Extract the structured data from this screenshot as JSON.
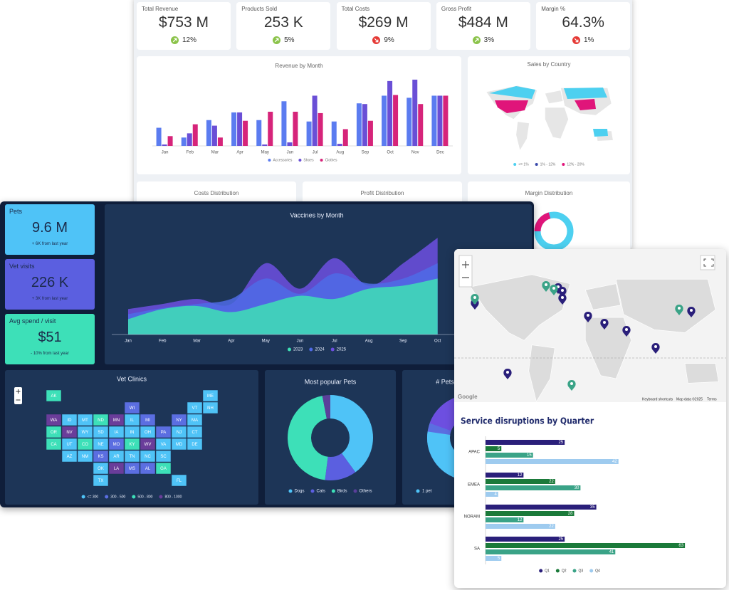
{
  "back_dashboard": {
    "kpis": [
      {
        "label": "Total Revenue",
        "value": "$753 M",
        "change": "12%",
        "trend": "up"
      },
      {
        "label": "Products Sold",
        "value": "253 K",
        "change": "5%",
        "trend": "up"
      },
      {
        "label": "Total Costs",
        "value": "$269 M",
        "change": "9%",
        "trend": "down"
      },
      {
        "label": "Gross Profit",
        "value": "$484 M",
        "change": "3%",
        "trend": "up"
      },
      {
        "label": "Margin %",
        "value": "64.3%",
        "change": "1%",
        "trend": "down"
      }
    ],
    "sales_map": {
      "title": "Sales by Country",
      "legend": [
        {
          "label": "<= 1%",
          "color": "#4dd0f0"
        },
        {
          "label": "1% - 12%",
          "color": "#3949ab"
        },
        {
          "label": "12% - 20%",
          "color": "#e0157a"
        }
      ]
    },
    "panel_titles": [
      "Costs Distribution",
      "Profit Distribution",
      "Margin Distribution"
    ]
  },
  "front_dashboard": {
    "kpis": [
      {
        "label": "Pets",
        "value": "9.6 M",
        "note": "+ 6K from last year",
        "color": "#4fc3f7"
      },
      {
        "label": "Vet visits",
        "value": "226 K",
        "note": "+ 3K from last year",
        "color": "#5b5fe0"
      },
      {
        "label": "Avg spend / visit",
        "value": "$51",
        "note": "- 10% from last year",
        "color": "#3de0b8"
      }
    ],
    "pets_count": {
      "title": "# Pets",
      "legend": [
        "1 pet"
      ]
    }
  },
  "map_widget": {
    "attribution": "Google",
    "footer": [
      "Keyboard shortcuts",
      "Map data ©2025",
      "Terms"
    ]
  },
  "chart_data": [
    {
      "type": "bar",
      "title": "Revenue by Month",
      "categories": [
        "Jan",
        "Feb",
        "Mar",
        "Apr",
        "May",
        "Jun",
        "Jul",
        "Aug",
        "Sep",
        "Oct",
        "Nov",
        "Dec"
      ],
      "series": [
        {
          "name": "Accessories",
          "color": "#5b7cf0",
          "values": [
            26,
            12,
            37,
            48,
            37,
            64,
            35,
            35,
            61,
            72,
            69,
            72
          ]
        },
        {
          "name": "Shoes",
          "color": "#6a4fd6",
          "values": [
            2,
            18,
            29,
            48,
            2,
            5,
            72,
            3,
            60,
            93,
            95,
            72
          ]
        },
        {
          "name": "Clothes",
          "color": "#d6247a",
          "values": [
            14,
            31,
            12,
            36,
            49,
            49,
            47,
            24,
            36,
            73,
            60,
            72
          ]
        }
      ],
      "ylim": [
        0,
        100
      ]
    },
    {
      "type": "area",
      "title": "Vaccines by Month",
      "categories": [
        "Jan",
        "Feb",
        "Mar",
        "Apr",
        "May",
        "Jun",
        "Jul",
        "Aug",
        "Sep",
        "Oct"
      ],
      "series": [
        {
          "name": "2023",
          "color": "#3ee0b5",
          "values": [
            15,
            25,
            28,
            22,
            30,
            38,
            35,
            45,
            48,
            55
          ]
        },
        {
          "name": "2024",
          "color": "#4f6be6",
          "values": [
            20,
            26,
            30,
            35,
            55,
            40,
            60,
            50,
            55,
            70
          ]
        },
        {
          "name": "2025",
          "color": "#6d4fe0",
          "values": [
            25,
            30,
            35,
            30,
            70,
            45,
            75,
            48,
            70,
            95
          ]
        }
      ],
      "ylim": [
        0,
        100
      ]
    },
    {
      "type": "choropleth",
      "title": "Vet Clinics",
      "legend": [
        {
          "label": "<= 300",
          "color": "#4fc3f7"
        },
        {
          "label": "300 - 500",
          "color": "#5b6ee1"
        },
        {
          "label": "500 - 800",
          "color": "#3de0b8"
        },
        {
          "label": "800 - 1000",
          "color": "#6a3d9a"
        }
      ],
      "states": [
        {
          "name": "AK",
          "bucket": 2
        },
        {
          "name": "ME",
          "bucket": 0
        },
        {
          "name": "WI",
          "bucket": 1
        },
        {
          "name": "VT",
          "bucket": 0
        },
        {
          "name": "NH",
          "bucket": 0
        },
        {
          "name": "WA",
          "bucket": 3
        },
        {
          "name": "ID",
          "bucket": 0
        },
        {
          "name": "MT",
          "bucket": 0
        },
        {
          "name": "ND",
          "bucket": 2
        },
        {
          "name": "MN",
          "bucket": 3
        },
        {
          "name": "IL",
          "bucket": 0
        },
        {
          "name": "MI",
          "bucket": 1
        },
        {
          "name": "NY",
          "bucket": 1
        },
        {
          "name": "MA",
          "bucket": 0
        },
        {
          "name": "OR",
          "bucket": 2
        },
        {
          "name": "NV",
          "bucket": 3
        },
        {
          "name": "WY",
          "bucket": 0
        },
        {
          "name": "SD",
          "bucket": 0
        },
        {
          "name": "IA",
          "bucket": 0
        },
        {
          "name": "IN",
          "bucket": 0
        },
        {
          "name": "OH",
          "bucket": 0
        },
        {
          "name": "PA",
          "bucket": 1
        },
        {
          "name": "NJ",
          "bucket": 0
        },
        {
          "name": "CT",
          "bucket": 0
        },
        {
          "name": "CA",
          "bucket": 2
        },
        {
          "name": "UT",
          "bucket": 0
        },
        {
          "name": "CO",
          "bucket": 2
        },
        {
          "name": "NE",
          "bucket": 0
        },
        {
          "name": "MO",
          "bucket": 1
        },
        {
          "name": "KY",
          "bucket": 2
        },
        {
          "name": "WV",
          "bucket": 3
        },
        {
          "name": "VA",
          "bucket": 0
        },
        {
          "name": "MD",
          "bucket": 0
        },
        {
          "name": "DE",
          "bucket": 0
        },
        {
          "name": "AZ",
          "bucket": 0
        },
        {
          "name": "NM",
          "bucket": 0
        },
        {
          "name": "KS",
          "bucket": 1
        },
        {
          "name": "AR",
          "bucket": 0
        },
        {
          "name": "TN",
          "bucket": 0
        },
        {
          "name": "NC",
          "bucket": 0
        },
        {
          "name": "SC",
          "bucket": 0
        },
        {
          "name": "OK",
          "bucket": 0
        },
        {
          "name": "LA",
          "bucket": 3
        },
        {
          "name": "MS",
          "bucket": 1
        },
        {
          "name": "AL",
          "bucket": 1
        },
        {
          "name": "GA",
          "bucket": 2
        },
        {
          "name": "TX",
          "bucket": 0
        },
        {
          "name": "FL",
          "bucket": 0
        }
      ]
    },
    {
      "type": "pie",
      "title": "Most popular Pets",
      "donut": true,
      "categories": [
        "Dogs",
        "Cats",
        "Birds",
        "Others"
      ],
      "values": [
        40,
        12,
        45,
        3
      ],
      "colors": [
        "#4fc3f7",
        "#5b5fe0",
        "#3de0b8",
        "#5a3f9a"
      ]
    },
    {
      "type": "hbar",
      "title": "Service disruptions by Quarter",
      "categories": [
        "APAC",
        "EMEA",
        "NORAM",
        "SA"
      ],
      "series": [
        {
          "name": "Q1",
          "color": "#2a1f7a",
          "values": [
            25,
            12,
            35,
            25
          ]
        },
        {
          "name": "Q2",
          "color": "#1b7a3a",
          "values": [
            5,
            22,
            28,
            63
          ]
        },
        {
          "name": "Q3",
          "color": "#3aa387",
          "values": [
            15,
            30,
            12,
            41
          ]
        },
        {
          "name": "Q4",
          "color": "#9ecbef",
          "values": [
            42,
            4,
            22,
            5
          ]
        }
      ],
      "xlim": [
        0,
        65
      ]
    }
  ]
}
